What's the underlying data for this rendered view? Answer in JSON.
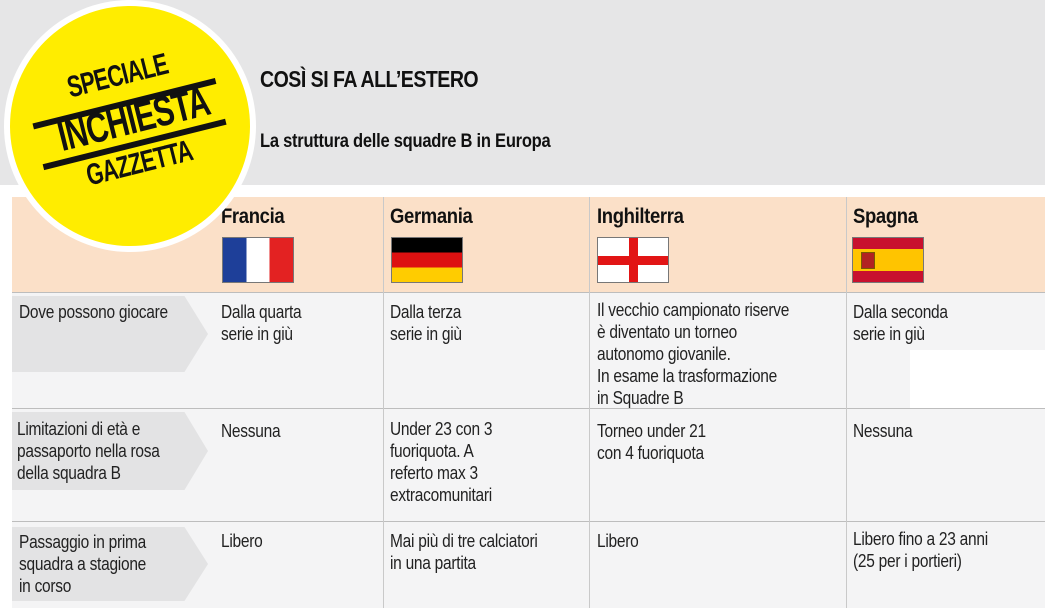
{
  "badge": {
    "line1": "SPECIALE",
    "line2": "INCHIESTA",
    "line3": "GAZZETTA"
  },
  "header": {
    "title": "COSÌ SI FA ALL’ESTERO",
    "subtitle": "La struttura delle squadre B in Europa"
  },
  "countries": [
    {
      "name": "Francia",
      "flag": "france-flag-icon"
    },
    {
      "name": "Germania",
      "flag": "germany-flag-icon"
    },
    {
      "name": "Inghilterra",
      "flag": "england-flag-icon"
    },
    {
      "name": "Spagna",
      "flag": "spain-flag-icon"
    }
  ],
  "rows": [
    {
      "label": "Dove possono giocare",
      "cells": [
        "Dalla quarta\nserie in giù",
        "Dalla terza\nserie in giù",
        "Il vecchio campionato riserve\nè diventato un torneo\nautonomo giovanile.\nIn esame la trasformazione\nin Squadre B",
        "Dalla seconda\nserie in giù"
      ]
    },
    {
      "label": "Limitazioni di età e\npassaporto nella rosa\ndella squadra B",
      "cells": [
        "Nessuna",
        "Under 23 con 3\nfuoriquota. A\nreferto max 3\nextracomunitari",
        "Torneo under 21\ncon 4 fuoriquota",
        "Nessuna"
      ]
    },
    {
      "label": "Passaggio in prima\nsquadra a stagione\nin corso",
      "cells": [
        "Libero",
        "Mai più di tre calciatori\nin una partita",
        "Libero",
        "Libero fino a 23 anni\n(25 per i  portieri)"
      ]
    }
  ],
  "colors": {
    "badge": "#ffed00",
    "header_row": "#fbe0c8",
    "top_band": "#e6e6e7"
  }
}
